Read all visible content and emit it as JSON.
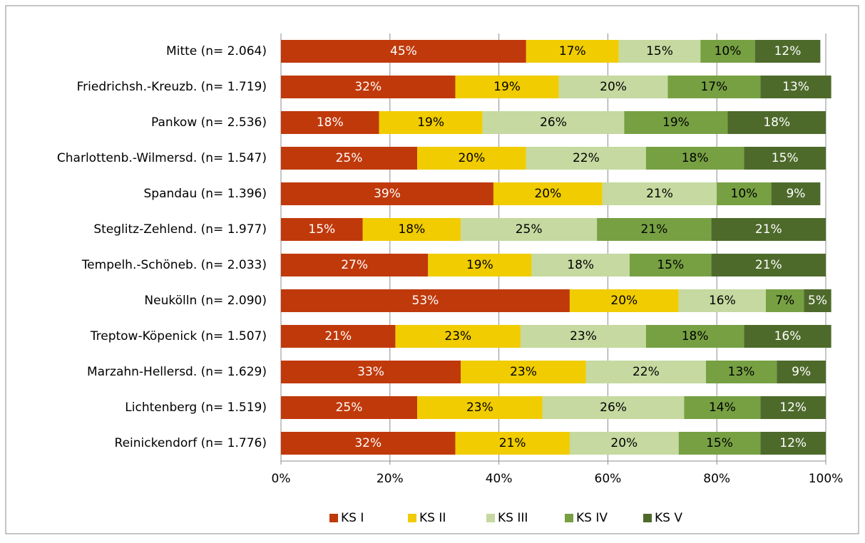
{
  "chart_data": {
    "type": "stacked_barh",
    "categories": [
      "Mitte (n= 2.064)",
      "Friedrichsh.-Kreuzb. (n= 1.719)",
      "Pankow (n= 2.536)",
      "Charlottenb.-Wilmersd. (n= 1.547)",
      "Spandau (n= 1.396)",
      "Steglitz-Zehlend. (n= 1.977)",
      "Tempelh.-Schöneb. (n= 2.033)",
      "Neukölln (n= 2.090)",
      "Treptow-Köpenick (n= 1.507)",
      "Marzahn-Hellersd. (n= 1.629)",
      "Lichtenberg (n= 1.519)",
      "Reinickendorf (n= 1.776)"
    ],
    "series": [
      {
        "name": "KS I",
        "color": "#c0390b",
        "values": [
          45,
          32,
          18,
          25,
          39,
          15,
          27,
          53,
          21,
          33,
          25,
          32
        ],
        "value_labels": [
          "45%",
          "32%",
          "18%",
          "25%",
          "39%",
          "15%",
          "27%",
          "53%",
          "21%",
          "33%",
          "25%",
          "32%"
        ]
      },
      {
        "name": "KS II",
        "color": "#f0cc00",
        "values": [
          17,
          19,
          19,
          20,
          20,
          18,
          19,
          20,
          23,
          23,
          23,
          21
        ],
        "value_labels": [
          "17%",
          "19%",
          "19%",
          "20%",
          "20%",
          "18%",
          "19%",
          "20%",
          "23%",
          "23%",
          "23%",
          "21%"
        ]
      },
      {
        "name": "KS III",
        "color": "#c5d9a0",
        "values": [
          15,
          20,
          26,
          22,
          21,
          25,
          18,
          16,
          23,
          22,
          26,
          20
        ],
        "value_labels": [
          "15%",
          "20%",
          "26%",
          "22%",
          "21%",
          "25%",
          "18%",
          "16%",
          "23%",
          "22%",
          "26%",
          "20%"
        ]
      },
      {
        "name": "KS IV",
        "color": "#77a043",
        "values": [
          10,
          17,
          19,
          18,
          10,
          21,
          15,
          7,
          18,
          13,
          14,
          15
        ],
        "value_labels": [
          "10%",
          "17%",
          "19%",
          "18%",
          "10%",
          "21%",
          "15%",
          "7%",
          "18%",
          "13%",
          "14%",
          "15%"
        ]
      },
      {
        "name": "KS V",
        "color": "#4e6a2b",
        "values": [
          12,
          13,
          18,
          15,
          9,
          21,
          21,
          5,
          16,
          9,
          12,
          12
        ],
        "value_labels": [
          "12%",
          "13%",
          "18%",
          "15%",
          "9%",
          "21%",
          "21%",
          "5%",
          "16%",
          "9%",
          "12%",
          "12%"
        ]
      }
    ],
    "xlim": [
      0,
      100
    ],
    "xticks": [
      {
        "value": 0,
        "label": "0%"
      },
      {
        "value": 20,
        "label": "20%"
      },
      {
        "value": 40,
        "label": "40%"
      },
      {
        "value": 60,
        "label": "60%"
      },
      {
        "value": 80,
        "label": "80%"
      },
      {
        "value": 100,
        "label": "100%"
      }
    ],
    "grid": true,
    "legend": "bottom"
  }
}
